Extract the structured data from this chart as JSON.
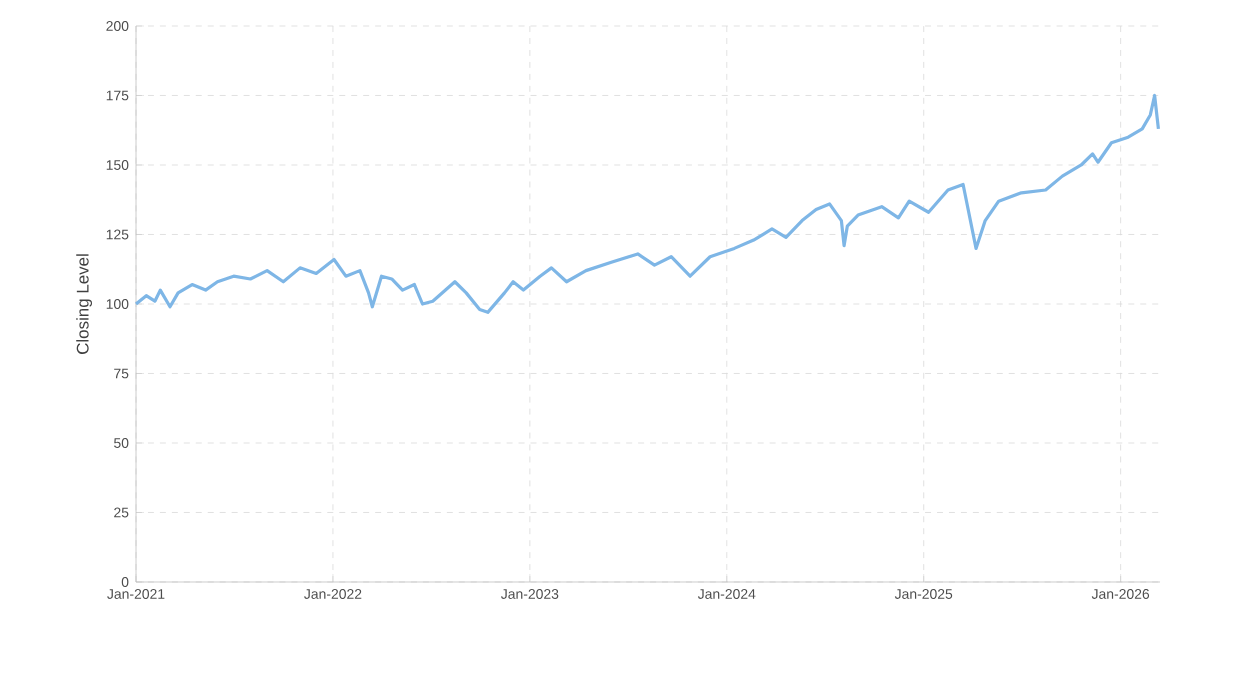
{
  "chart_data": {
    "type": "line",
    "ylabel": "Closing Level",
    "color": "#7eb6e6",
    "grid": true,
    "line_style": "solid",
    "xlim": [
      "2021-01-01",
      "2026-03-15"
    ],
    "ylim": [
      0,
      200
    ],
    "xticks": [
      {
        "value": "2021-01-01",
        "label": "Jan-2021"
      },
      {
        "value": "2022-01-01",
        "label": "Jan-2022"
      },
      {
        "value": "2023-01-01",
        "label": "Jan-2023"
      },
      {
        "value": "2024-01-01",
        "label": "Jan-2024"
      },
      {
        "value": "2025-01-01",
        "label": "Jan-2025"
      },
      {
        "value": "2026-01-01",
        "label": "Jan-2026"
      }
    ],
    "yticks": [
      0,
      25,
      50,
      75,
      100,
      125,
      150,
      175,
      200
    ],
    "x": [
      "2021-01-01",
      "2021-01-20",
      "2021-02-05",
      "2021-02-15",
      "2021-03-05",
      "2021-03-20",
      "2021-04-15",
      "2021-05-10",
      "2021-06-01",
      "2021-07-01",
      "2021-08-01",
      "2021-09-01",
      "2021-10-01",
      "2021-11-01",
      "2021-12-01",
      "2022-01-03",
      "2022-01-25",
      "2022-02-20",
      "2022-03-08",
      "2022-03-15",
      "2022-04-01",
      "2022-04-20",
      "2022-05-10",
      "2022-06-01",
      "2022-06-16",
      "2022-07-05",
      "2022-08-15",
      "2022-09-05",
      "2022-09-30",
      "2022-10-15",
      "2022-11-15",
      "2022-12-01",
      "2022-12-20",
      "2023-01-20",
      "2023-02-10",
      "2023-03-10",
      "2023-04-15",
      "2023-06-01",
      "2023-07-20",
      "2023-08-20",
      "2023-09-20",
      "2023-10-25",
      "2023-12-01",
      "2024-01-15",
      "2024-02-20",
      "2024-03-25",
      "2024-04-20",
      "2024-05-20",
      "2024-06-15",
      "2024-07-10",
      "2024-08-01",
      "2024-08-06",
      "2024-08-12",
      "2024-09-01",
      "2024-10-15",
      "2024-11-15",
      "2024-12-05",
      "2025-01-10",
      "2025-02-15",
      "2025-03-15",
      "2025-04-08",
      "2025-04-25",
      "2025-05-20",
      "2025-07-01",
      "2025-08-15",
      "2025-09-15",
      "2025-10-20",
      "2025-11-10",
      "2025-11-20",
      "2025-12-15",
      "2026-01-15",
      "2026-02-10",
      "2026-02-25",
      "2026-03-05",
      "2026-03-12"
    ],
    "values": [
      100,
      103,
      101,
      105,
      99,
      104,
      107,
      105,
      108,
      110,
      109,
      112,
      108,
      113,
      111,
      116,
      110,
      112,
      104,
      99,
      110,
      109,
      105,
      107,
      100,
      101,
      108,
      104,
      98,
      97,
      104,
      108,
      105,
      110,
      113,
      108,
      112,
      115,
      118,
      114,
      117,
      110,
      117,
      120,
      123,
      127,
      124,
      130,
      134,
      136,
      130,
      121,
      128,
      132,
      135,
      131,
      137,
      133,
      141,
      143,
      120,
      130,
      137,
      140,
      141,
      146,
      150,
      154,
      151,
      158,
      160,
      163,
      168,
      175,
      163
    ]
  }
}
